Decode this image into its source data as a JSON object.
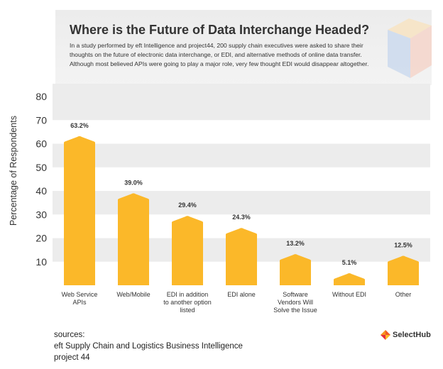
{
  "header": {
    "title": "Where is the Future of Data Interchange Headed?",
    "description": "In a study performed by eft Intelligence and project44, 200 supply chain executives were asked to share their thoughts on the future of electronic data interchange, or EDI, and alternative methods of online data transfer. Although most believed APIs were going to play a major role, very few thought EDI would disappear altogether."
  },
  "chart_data": {
    "type": "bar",
    "title": "Where is the Future of Data Interchange Headed?",
    "ylabel": "Percentage of Respondents",
    "xlabel": "",
    "ylim": [
      0,
      80
    ],
    "yticks": [
      10,
      20,
      30,
      40,
      50,
      60,
      70,
      80
    ],
    "categories": [
      [
        "Web Service",
        "APIs"
      ],
      [
        "Web/Mobile"
      ],
      [
        "EDI in addition",
        "to another option",
        "listed"
      ],
      [
        "EDI alone"
      ],
      [
        "Software",
        "Vendors Will",
        "Solve the Issue"
      ],
      [
        "Without EDI"
      ],
      [
        "Other"
      ]
    ],
    "values": [
      63.2,
      39.0,
      29.4,
      24.3,
      13.2,
      5.1,
      12.5
    ],
    "data_labels": [
      "63.2%",
      "39.0%",
      "29.4%",
      "24.3%",
      "13.2%",
      "5.1%",
      "12.5%"
    ],
    "grid": true,
    "bar_color": "#fbb829",
    "band_color": "#ececec"
  },
  "sources": {
    "heading": "sources:",
    "items": [
      "eft Supply Chain and Logistics Business Intelligence",
      "project 44"
    ]
  },
  "brand": {
    "name": "SelectHub",
    "icon": "selecthub-logo-icon"
  }
}
